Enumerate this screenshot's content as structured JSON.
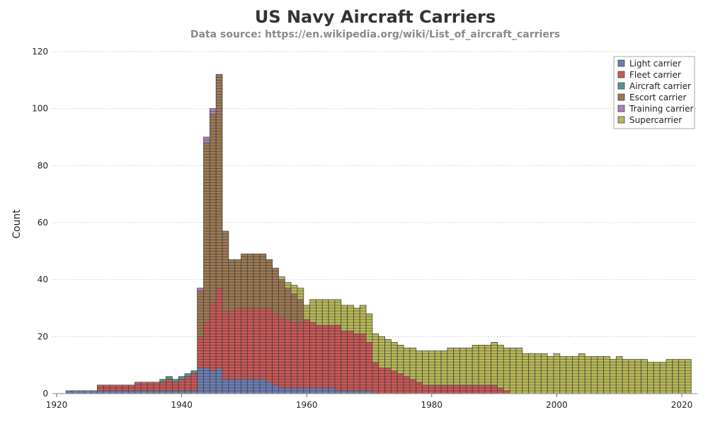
{
  "chart_data": {
    "type": "bar",
    "stacked": true,
    "title": "US Navy Aircraft Carriers",
    "subtitle": "Data source: https://en.wikipedia.org/wiki/List_of_aircraft_carriers",
    "ylabel": "Count",
    "xlabel": "",
    "xlim": [
      1920,
      2022
    ],
    "ylim": [
      0,
      120
    ],
    "x_ticks": [
      1920,
      1940,
      1960,
      1980,
      2000,
      2020
    ],
    "y_ticks": [
      0,
      20,
      40,
      60,
      80,
      100,
      120
    ],
    "grid": "horizontal dotted",
    "legend_position": "top-right",
    "bar_pattern": "one cell per ship",
    "x": [
      1922,
      1923,
      1924,
      1925,
      1926,
      1927,
      1928,
      1929,
      1930,
      1931,
      1932,
      1933,
      1934,
      1935,
      1936,
      1937,
      1938,
      1939,
      1940,
      1941,
      1942,
      1943,
      1944,
      1945,
      1946,
      1947,
      1948,
      1949,
      1950,
      1951,
      1952,
      1953,
      1954,
      1955,
      1956,
      1957,
      1958,
      1959,
      1960,
      1961,
      1962,
      1963,
      1964,
      1965,
      1966,
      1967,
      1968,
      1969,
      1970,
      1971,
      1972,
      1973,
      1974,
      1975,
      1976,
      1977,
      1978,
      1979,
      1980,
      1981,
      1982,
      1983,
      1984,
      1985,
      1986,
      1987,
      1988,
      1989,
      1990,
      1991,
      1992,
      1993,
      1994,
      1995,
      1996,
      1997,
      1998,
      1999,
      2000,
      2001,
      2002,
      2003,
      2004,
      2005,
      2006,
      2007,
      2008,
      2009,
      2010,
      2011,
      2012,
      2013,
      2014,
      2015,
      2016,
      2017,
      2018,
      2019,
      2020,
      2021
    ],
    "series": [
      {
        "name": "Light carrier",
        "color": "#6f7fb3",
        "values": [
          1,
          1,
          1,
          1,
          1,
          1,
          1,
          1,
          1,
          1,
          1,
          1,
          1,
          1,
          1,
          1,
          1,
          1,
          1,
          1,
          1,
          9,
          9,
          8,
          9,
          5,
          5,
          5,
          5,
          5,
          5,
          5,
          4,
          3,
          2,
          2,
          2,
          2,
          2,
          2,
          2,
          2,
          2,
          1,
          1,
          1,
          1,
          1,
          1,
          0,
          0,
          0,
          0,
          0,
          0,
          0,
          0,
          0,
          0,
          0,
          0,
          0,
          0,
          0,
          0,
          0,
          0,
          0,
          0,
          0,
          0,
          0,
          0,
          0,
          0,
          0,
          0,
          0,
          0,
          0,
          0,
          0,
          0,
          0,
          0,
          0,
          0,
          0,
          0,
          0,
          0,
          0,
          0,
          0,
          0,
          0,
          0,
          0,
          0,
          0
        ]
      },
      {
        "name": "Fleet carrier",
        "color": "#c75a59",
        "values": [
          0,
          0,
          0,
          0,
          0,
          2,
          2,
          2,
          2,
          2,
          2,
          3,
          3,
          3,
          3,
          3,
          4,
          3,
          4,
          5,
          6,
          11,
          16,
          24,
          28,
          24,
          24,
          25,
          25,
          25,
          25,
          25,
          26,
          25,
          25,
          24,
          23,
          23,
          24,
          23,
          22,
          22,
          22,
          23,
          21,
          21,
          20,
          20,
          17,
          11,
          9,
          9,
          8,
          7,
          6,
          5,
          4,
          3,
          3,
          3,
          3,
          3,
          3,
          3,
          3,
          3,
          3,
          3,
          3,
          2,
          1,
          0,
          0,
          0,
          0,
          0,
          0,
          0,
          0,
          0,
          0,
          0,
          0,
          0,
          0,
          0,
          0,
          0,
          0,
          0,
          0,
          0,
          0,
          0,
          0,
          0,
          0,
          0,
          0,
          0
        ]
      },
      {
        "name": "Aircraft carrier",
        "color": "#57978c",
        "values": [
          0,
          0,
          0,
          0,
          0,
          0,
          0,
          0,
          0,
          0,
          0,
          0,
          0,
          0,
          0,
          1,
          1,
          1,
          1,
          1,
          1,
          0,
          0,
          0,
          0,
          0,
          0,
          0,
          0,
          0,
          0,
          0,
          0,
          0,
          0,
          0,
          0,
          0,
          0,
          0,
          0,
          0,
          0,
          0,
          0,
          0,
          0,
          0,
          0,
          0,
          0,
          0,
          0,
          0,
          0,
          0,
          0,
          0,
          0,
          0,
          0,
          0,
          0,
          0,
          0,
          0,
          0,
          0,
          0,
          0,
          0,
          0,
          0,
          0,
          0,
          0,
          0,
          0,
          0,
          0,
          0,
          0,
          0,
          0,
          0,
          0,
          0,
          0,
          0,
          0,
          0,
          0,
          0,
          0,
          0,
          0,
          0,
          0,
          0,
          0
        ]
      },
      {
        "name": "Escort carrier",
        "color": "#9c7a55",
        "values": [
          0,
          0,
          0,
          0,
          0,
          0,
          0,
          0,
          0,
          0,
          0,
          0,
          0,
          0,
          0,
          0,
          0,
          0,
          0,
          0,
          0,
          16,
          63,
          66,
          75,
          28,
          18,
          17,
          19,
          19,
          19,
          19,
          17,
          16,
          13,
          11,
          10,
          8,
          0,
          0,
          0,
          0,
          0,
          0,
          0,
          0,
          0,
          0,
          0,
          0,
          0,
          0,
          0,
          0,
          0,
          0,
          0,
          0,
          0,
          0,
          0,
          0,
          0,
          0,
          0,
          0,
          0,
          0,
          0,
          0,
          0,
          0,
          0,
          0,
          0,
          0,
          0,
          0,
          0,
          0,
          0,
          0,
          0,
          0,
          0,
          0,
          0,
          0,
          0,
          0,
          0,
          0,
          0,
          0,
          0,
          0,
          0,
          0,
          0,
          0
        ]
      },
      {
        "name": "Training carrier",
        "color": "#a882bd",
        "values": [
          0,
          0,
          0,
          0,
          0,
          0,
          0,
          0,
          0,
          0,
          0,
          0,
          0,
          0,
          0,
          0,
          0,
          0,
          0,
          0,
          0,
          1,
          2,
          2,
          0,
          0,
          0,
          0,
          0,
          0,
          0,
          0,
          0,
          0,
          0,
          0,
          0,
          0,
          0,
          0,
          0,
          0,
          0,
          0,
          0,
          0,
          0,
          0,
          0,
          0,
          0,
          0,
          0,
          0,
          0,
          0,
          0,
          0,
          0,
          0,
          0,
          0,
          0,
          0,
          0,
          0,
          0,
          0,
          0,
          0,
          0,
          0,
          0,
          0,
          0,
          0,
          0,
          0,
          0,
          0,
          0,
          0,
          0,
          0,
          0,
          0,
          0,
          0,
          0,
          0,
          0,
          0,
          0,
          0,
          0,
          0,
          0,
          0,
          0,
          0
        ]
      },
      {
        "name": "Supercarrier",
        "color": "#b8b85a",
        "values": [
          0,
          0,
          0,
          0,
          0,
          0,
          0,
          0,
          0,
          0,
          0,
          0,
          0,
          0,
          0,
          0,
          0,
          0,
          0,
          0,
          0,
          0,
          0,
          0,
          0,
          0,
          0,
          0,
          0,
          0,
          0,
          0,
          0,
          0,
          1,
          2,
          3,
          4,
          5,
          8,
          9,
          9,
          9,
          9,
          9,
          9,
          9,
          10,
          10,
          10,
          11,
          10,
          10,
          10,
          10,
          11,
          11,
          12,
          12,
          12,
          12,
          13,
          13,
          13,
          13,
          14,
          14,
          14,
          15,
          15,
          15,
          16,
          16,
          14,
          14,
          14,
          14,
          13,
          14,
          13,
          13,
          13,
          14,
          13,
          13,
          13,
          13,
          12,
          13,
          12,
          12,
          12,
          12,
          11,
          11,
          11,
          12,
          12,
          12,
          12
        ]
      }
    ]
  }
}
